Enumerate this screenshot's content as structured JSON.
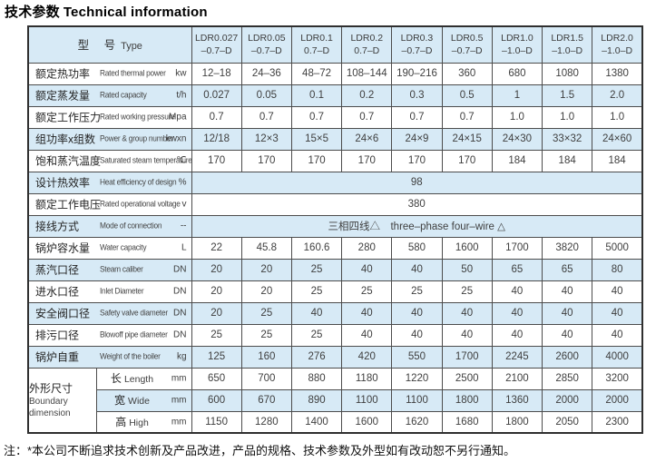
{
  "title": {
    "zh": "技术参数",
    "en": "Technical information"
  },
  "colors": {
    "band": "#d7eaf6",
    "border": "#4c4c4c"
  },
  "table": {
    "header": {
      "type_label_zh": "型　号",
      "type_label_en": "Type",
      "models": [
        {
          "name": "LDR0.027",
          "suffix": "–0.7–D"
        },
        {
          "name": "LDR0.05",
          "suffix": "–0.7–D"
        },
        {
          "name": "LDR0.1",
          "suffix": "0.7–D"
        },
        {
          "name": "LDR0.2",
          "suffix": "0.7–D"
        },
        {
          "name": "LDR0.3",
          "suffix": "–0.7–D"
        },
        {
          "name": "LDR0.5",
          "suffix": "–0.7–D"
        },
        {
          "name": "LDR1.0",
          "suffix": "–1.0–D"
        },
        {
          "name": "LDR1.5",
          "suffix": "–1.0–D"
        },
        {
          "name": "LDR2.0",
          "suffix": "–1.0–D"
        }
      ]
    },
    "rows": [
      {
        "type": "data",
        "zh": "额定热功率",
        "en": "Rated thermal power",
        "unit": "kw",
        "band": false,
        "values": [
          "12–18",
          "24–36",
          "48–72",
          "108–144",
          "190–216",
          "360",
          "680",
          "1080",
          "1380"
        ]
      },
      {
        "type": "data",
        "zh": "额定蒸发量",
        "en": "Rated capacity",
        "unit": "t/h",
        "band": true,
        "values": [
          "0.027",
          "0.05",
          "0.1",
          "0.2",
          "0.3",
          "0.5",
          "1",
          "1.5",
          "2.0"
        ]
      },
      {
        "type": "data",
        "zh": "额定工作压力",
        "en": "Rated working pressure",
        "unit": "Mpa",
        "band": false,
        "values": [
          "0.7",
          "0.7",
          "0.7",
          "0.7",
          "0.7",
          "0.7",
          "1.0",
          "1.0",
          "1.0"
        ]
      },
      {
        "type": "data",
        "zh": "组功率x组数",
        "en": "Power & group number",
        "unit": "kwxn",
        "band": true,
        "values": [
          "12/18",
          "12×3",
          "15×5",
          "24×6",
          "24×9",
          "24×15",
          "24×30",
          "33×32",
          "24×60"
        ]
      },
      {
        "type": "data",
        "zh": "饱和蒸汽温度",
        "en": "Saturated steam temperature",
        "unit": "℃",
        "band": false,
        "values": [
          "170",
          "170",
          "170",
          "170",
          "170",
          "170",
          "184",
          "184",
          "184"
        ]
      },
      {
        "type": "merged",
        "zh": "设计热效率",
        "en": "Heat efficiency of design",
        "unit": "%",
        "band": true,
        "value": "98"
      },
      {
        "type": "merged",
        "zh": "额定工作电压",
        "en": "Rated operational voltage",
        "unit": "v",
        "band": false,
        "value": "380"
      },
      {
        "type": "merged",
        "zh": "接线方式",
        "en": "Mode of connection",
        "unit": "--",
        "band": true,
        "value": "三相四线△　three–phase four–wire △"
      },
      {
        "type": "data",
        "zh": "锅炉容水量",
        "en": "Water capacity",
        "unit": "L",
        "band": false,
        "values": [
          "22",
          "45.8",
          "160.6",
          "280",
          "580",
          "1600",
          "1700",
          "3820",
          "5000"
        ]
      },
      {
        "type": "data",
        "zh": "蒸汽口径",
        "en": "Steam caliber",
        "unit": "DN",
        "band": true,
        "values": [
          "20",
          "20",
          "25",
          "40",
          "40",
          "50",
          "65",
          "65",
          "80"
        ]
      },
      {
        "type": "data",
        "zh": "进水口径",
        "en": "Inlet Diameter",
        "unit": "DN",
        "band": false,
        "values": [
          "20",
          "20",
          "25",
          "25",
          "25",
          "25",
          "40",
          "40",
          "40"
        ]
      },
      {
        "type": "data",
        "zh": "安全阀口径",
        "en": "Safety valve diameter",
        "unit": "DN",
        "band": true,
        "values": [
          "20",
          "25",
          "40",
          "40",
          "40",
          "40",
          "40",
          "40",
          "40"
        ]
      },
      {
        "type": "data",
        "zh": "排污口径",
        "en": "Blowoff pipe diameter",
        "unit": "DN",
        "band": false,
        "values": [
          "25",
          "25",
          "25",
          "40",
          "40",
          "40",
          "40",
          "40",
          "40"
        ]
      },
      {
        "type": "data",
        "zh": "锅炉自重",
        "en": "Weight of the boiler",
        "unit": "kg",
        "band": true,
        "values": [
          "125",
          "160",
          "276",
          "420",
          "550",
          "1700",
          "2245",
          "2600",
          "4000"
        ]
      }
    ],
    "dimension_group": {
      "zh": "外形尺寸",
      "en": "Boundary dimension",
      "rows": [
        {
          "zh": "长",
          "en": "Length",
          "unit": "mm",
          "band": false,
          "values": [
            "650",
            "700",
            "880",
            "1180",
            "1220",
            "2500",
            "2100",
            "2850",
            "3200"
          ]
        },
        {
          "zh": "宽",
          "en": "Wide",
          "unit": "mm",
          "band": true,
          "values": [
            "600",
            "670",
            "890",
            "1100",
            "1100",
            "1800",
            "1360",
            "2000",
            "2000"
          ]
        },
        {
          "zh": "高",
          "en": "High",
          "unit": "mm",
          "band": false,
          "values": [
            "1150",
            "1280",
            "1400",
            "1600",
            "1620",
            "1680",
            "1800",
            "2050",
            "2300"
          ]
        }
      ]
    }
  },
  "footnote": "注：*本公司不断追求技术创新及产品改进，产品的规格、技术参数及外型如有改动恕不另行通知。"
}
